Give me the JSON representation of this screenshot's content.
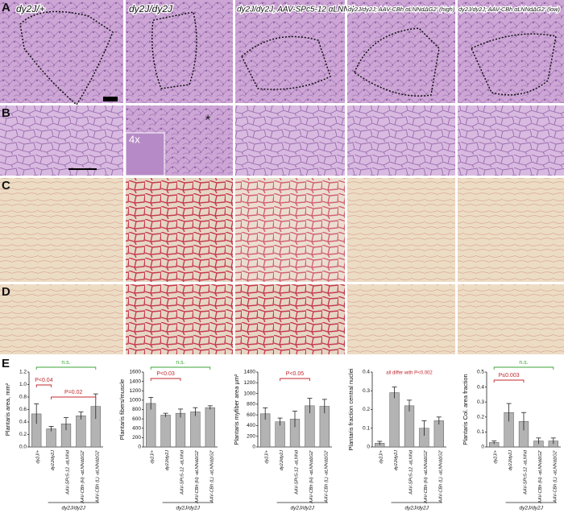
{
  "panel_labels": [
    "A",
    "B",
    "C",
    "D",
    "E"
  ],
  "column_titles": [
    "dy2J/+",
    "dy2J/dy2J",
    "dy2J/dy2J, AAV-SPc5-12 αLNNd",
    "dy2J/dy2J; AAV-CBh αLNNdΔG2' (high)",
    "dy2J/dy2J; AAV-CBh αLNNdΔG2' (low)"
  ],
  "inset_label": "4x",
  "asterisk": "*",
  "chart_data": [
    {
      "type": "bar",
      "ylabel": "Plantaris area, mm²",
      "color": "#b3b3b3",
      "group_label": "dy2J/dy2J",
      "categories": [
        "dy2J/+",
        "dy2J/dy2J",
        "AAV-SPc5-12 -αLNNd",
        "AAV-CBh (H) -αLNNdΔG2'",
        "AAV-CBh (L) -αLNNdΔG2'"
      ],
      "values": [
        0.53,
        0.29,
        0.37,
        0.5,
        0.65
      ],
      "errors": [
        0.16,
        0.04,
        0.1,
        0.06,
        0.2
      ],
      "ylim": [
        0,
        1.2
      ],
      "yticks": [
        {
          "value": 0,
          "label": "0.0"
        },
        {
          "value": 0.2,
          "label": "0.2"
        },
        {
          "value": 0.4,
          "label": "0.4"
        },
        {
          "value": 0.6,
          "label": "0.6"
        },
        {
          "value": 0.8,
          "label": "0.8"
        },
        {
          "value": 1,
          "label": "1.0"
        },
        {
          "value": 1.2,
          "label": "1.2"
        }
      ],
      "annotations": [
        {
          "text": "n.s.",
          "color": "#3aa635"
        },
        {
          "text": "P<0.04",
          "color": "#c0282d"
        },
        {
          "text": "P=0.02",
          "color": "#c0282d"
        }
      ]
    },
    {
      "type": "bar",
      "ylabel": "Plantaris fibers/muscle",
      "color": "#b3b3b3",
      "group_label": "dy2J/dy2J",
      "categories": [
        "dy2J/+",
        "dy2J/dy2J",
        "AAV-SPc5-12 -αLNNd",
        "AAV-CBh (H) -αLNNdΔG2'",
        "AAV-CBh (L) -αLNNdΔG2'"
      ],
      "values": [
        930,
        680,
        720,
        750,
        840
      ],
      "errors": [
        130,
        40,
        90,
        90,
        40
      ],
      "ylim": [
        0,
        1600
      ],
      "yticks": [
        0,
        200,
        400,
        600,
        800,
        1000,
        1200,
        1400,
        1600
      ],
      "annotations": [
        {
          "text": "n.s.",
          "color": "#3aa635"
        },
        {
          "text": "P<0.03",
          "color": "#c0282d"
        }
      ]
    },
    {
      "type": "bar",
      "ylabel": "Plantaris myfiber area µm²",
      "color": "#b3b3b3",
      "group_label": "dy2J/dy2J",
      "categories": [
        "dy2J/+",
        "dy2J/dy2J",
        "AAV-SPc5-12 -αLNNd",
        "AAV-CBh (H) -αLNNdΔG2'",
        "AAV-CBh (L) -αLNNdΔG2'"
      ],
      "values": [
        620,
        470,
        520,
        770,
        760
      ],
      "errors": [
        110,
        70,
        150,
        140,
        130
      ],
      "ylim": [
        0,
        1400
      ],
      "yticks": [
        0,
        200,
        400,
        600,
        800,
        1000,
        1200,
        1400
      ],
      "annotations": [
        {
          "text": "P<0.05",
          "color": "#c0282d"
        }
      ]
    },
    {
      "type": "bar",
      "ylabel": "Plantaris fraction central nuclei",
      "color": "#b3b3b3",
      "group_label": "dy2J/dy2J",
      "categories": [
        "dy2J/+",
        "dy2J/dy2J",
        "AAV-SPc5-12 -αLNNd",
        "AAV-CBh (H) -αLNNdΔG2'",
        "AAV-CBh (L) -αLNNdΔG2'"
      ],
      "values": [
        0.02,
        0.29,
        0.22,
        0.1,
        0.14
      ],
      "errors": [
        0.01,
        0.03,
        0.03,
        0.04,
        0.02
      ],
      "ylim": [
        0,
        0.4
      ],
      "yticks": [
        0,
        0.1,
        0.2,
        0.3,
        0.4
      ],
      "annotations": [
        {
          "text": "all differ with P<0.002",
          "color": "#c0282d"
        }
      ]
    },
    {
      "type": "bar",
      "ylabel": "Plantaris Col. area fraction",
      "color": "#b3b3b3",
      "group_label": "dy2J/dy2J",
      "categories": [
        "dy2J/+",
        "dy2J/dy2J",
        "AAV-SPc5-12 -αLNNd",
        "AAV-CBh (H) -αLNNdΔG2'",
        "AAV-CBh (L) -αLNNdΔG2'"
      ],
      "values": [
        0.03,
        0.23,
        0.17,
        0.04,
        0.04
      ],
      "errors": [
        0.01,
        0.06,
        0.06,
        0.02,
        0.02
      ],
      "ylim": [
        0,
        0.5
      ],
      "yticks": [
        0,
        0.1,
        0.2,
        0.3,
        0.4,
        0.5
      ],
      "annotations": [
        {
          "text": "n.s.",
          "color": "#3aa635"
        },
        {
          "text": "P≤0.003",
          "color": "#c0282d"
        }
      ]
    }
  ]
}
